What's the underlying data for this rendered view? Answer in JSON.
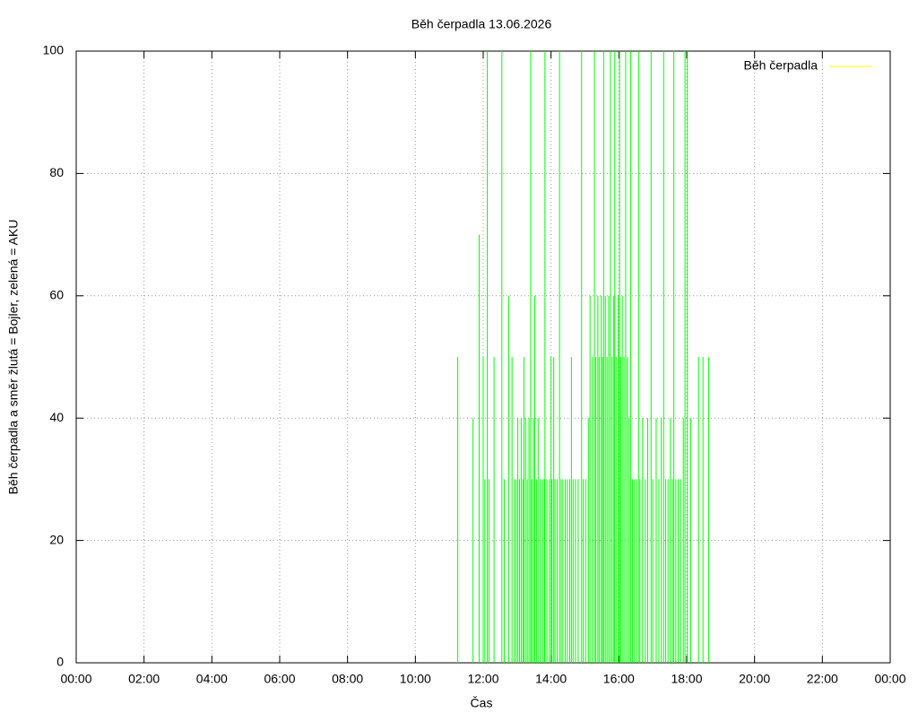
{
  "chart_data": {
    "type": "impulses",
    "title": "Běh čerpadla 13.06.2026",
    "x_label": "Čas",
    "y_label": "Běh čerpadla a směr žlutá = Bojler, zelená = AKU",
    "x": [
      11.25,
      11.7,
      11.88,
      12.0,
      12.05,
      12.12,
      12.17,
      12.32,
      12.55,
      12.62,
      12.75,
      12.85,
      12.92,
      12.97,
      13.02,
      13.07,
      13.12,
      13.17,
      13.2,
      13.25,
      13.3,
      13.35,
      13.4,
      13.43,
      13.48,
      13.52,
      13.57,
      13.62,
      13.68,
      13.75,
      13.8,
      13.82,
      13.88,
      13.95,
      14.0,
      14.03,
      14.08,
      14.12,
      14.18,
      14.25,
      14.3,
      14.35,
      14.42,
      14.48,
      14.55,
      14.6,
      14.65,
      14.72,
      14.8,
      14.9,
      14.95,
      15.02,
      15.1,
      15.15,
      15.22,
      15.28,
      15.32,
      15.38,
      15.42,
      15.48,
      15.52,
      15.55,
      15.6,
      15.65,
      15.7,
      15.75,
      15.8,
      15.85,
      15.88,
      15.92,
      15.98,
      16.02,
      16.05,
      16.1,
      16.15,
      16.2,
      16.25,
      16.3,
      16.35,
      16.4,
      16.45,
      16.52,
      16.58,
      16.62,
      16.7,
      16.78,
      16.85,
      16.95,
      17.0,
      17.1,
      17.18,
      17.25,
      17.32,
      17.38,
      17.45,
      17.52,
      17.58,
      17.62,
      17.68,
      17.75,
      17.82,
      17.9,
      17.95,
      18.02,
      18.12,
      18.35,
      18.48,
      18.65
    ],
    "series": [
      {
        "name": "Běh čerpadla",
        "color": "#00ff00",
        "legend_color": "#ffff00",
        "values": [
          50,
          40,
          70,
          50,
          30,
          100,
          30,
          50,
          100,
          30,
          60,
          50,
          30,
          30,
          40,
          30,
          40,
          30,
          50,
          40,
          30,
          40,
          100,
          30,
          40,
          60,
          30,
          40,
          30,
          30,
          30,
          100,
          30,
          30,
          50,
          30,
          50,
          30,
          30,
          100,
          30,
          30,
          30,
          30,
          30,
          50,
          30,
          30,
          30,
          100,
          30,
          30,
          40,
          60,
          50,
          100,
          50,
          60,
          50,
          60,
          50,
          100,
          60,
          50,
          60,
          100,
          50,
          60,
          100,
          50,
          60,
          100,
          50,
          60,
          50,
          100,
          50,
          40,
          100,
          30,
          30,
          30,
          100,
          30,
          40,
          30,
          40,
          100,
          30,
          40,
          30,
          40,
          100,
          30,
          30,
          40,
          30,
          100,
          30,
          30,
          30,
          40,
          100,
          100,
          40,
          50,
          50,
          50
        ]
      }
    ],
    "xlim": [
      0,
      24
    ],
    "xticks": [
      {
        "value": 0,
        "label": "00:00"
      },
      {
        "value": 2,
        "label": "02:00"
      },
      {
        "value": 4,
        "label": "04:00"
      },
      {
        "value": 6,
        "label": "06:00"
      },
      {
        "value": 8,
        "label": "08:00"
      },
      {
        "value": 10,
        "label": "10:00"
      },
      {
        "value": 12,
        "label": "12:00"
      },
      {
        "value": 14,
        "label": "14:00"
      },
      {
        "value": 16,
        "label": "16:00"
      },
      {
        "value": 18,
        "label": "18:00"
      },
      {
        "value": 20,
        "label": "20:00"
      },
      {
        "value": 22,
        "label": "22:00"
      },
      {
        "value": 24,
        "label": "00:00"
      }
    ],
    "ylim": [
      0,
      100
    ],
    "yticks": [
      0,
      20,
      40,
      60,
      80,
      100
    ],
    "grid": true,
    "legend": "top-right"
  }
}
